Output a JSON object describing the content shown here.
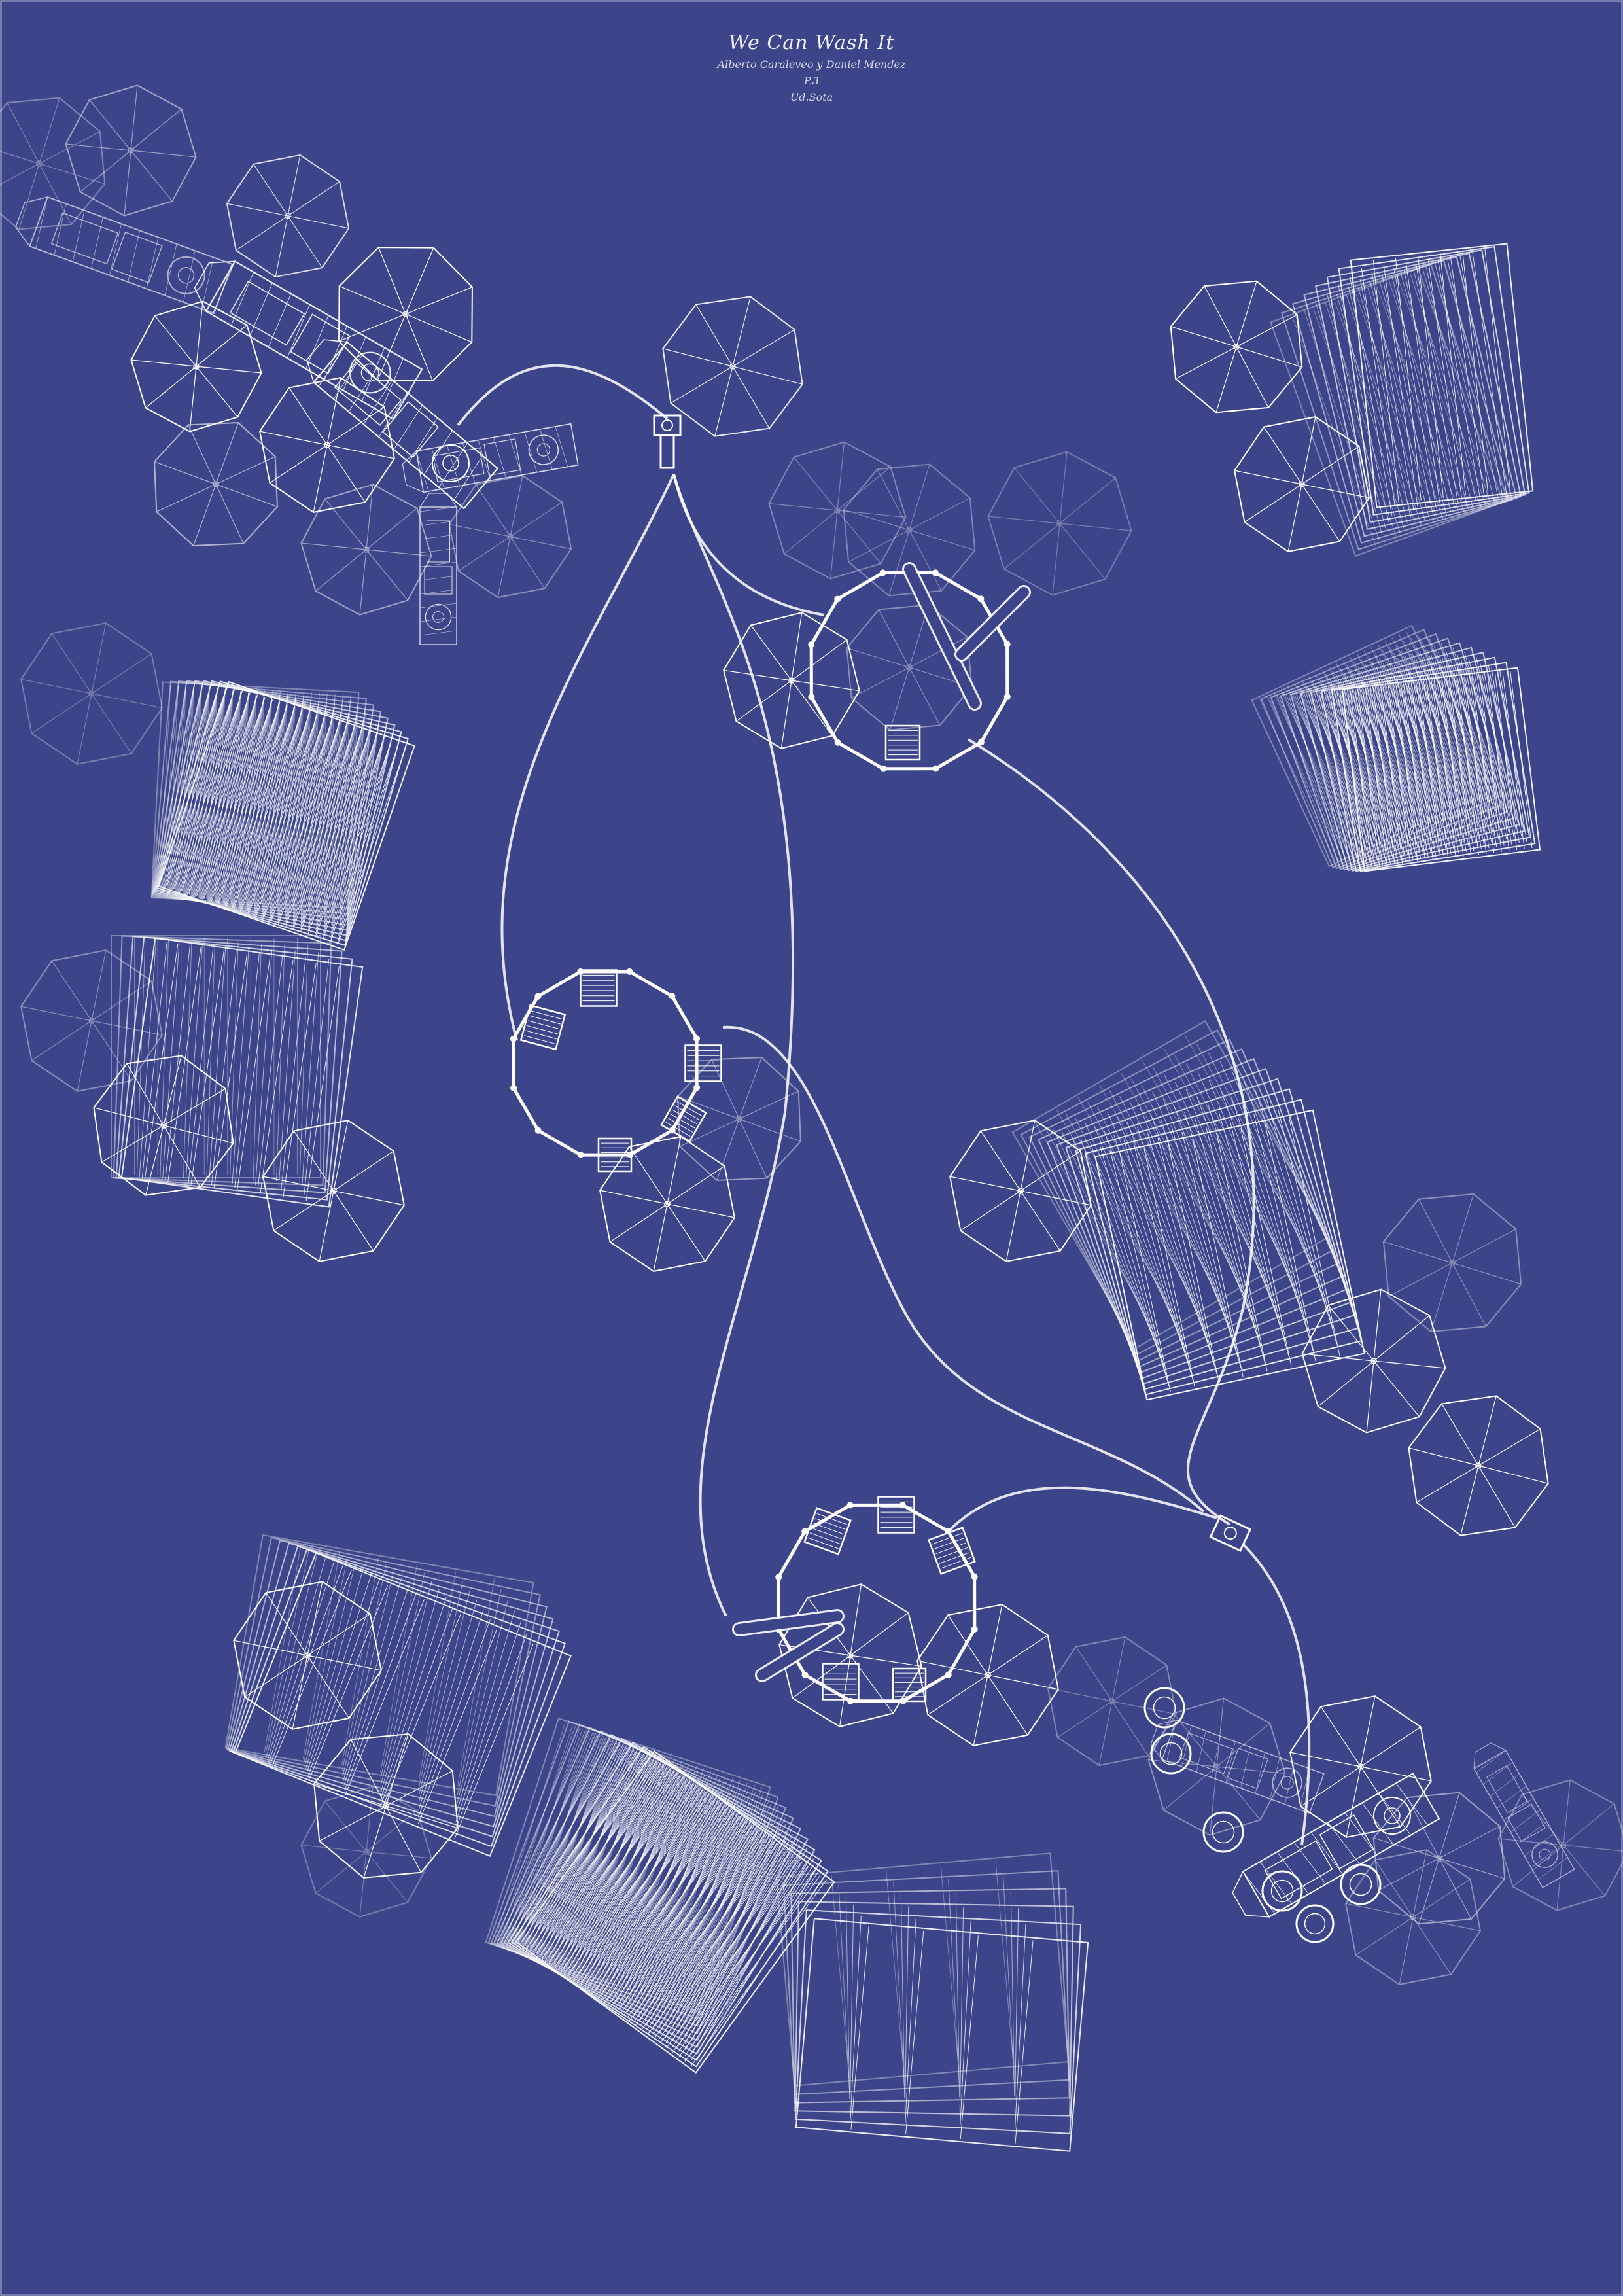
{
  "title_block": {
    "title": "We Can Wash It",
    "authors": "Alberto Caraleveo y Daniel Mendez",
    "code": "P.3",
    "school": "Ud.Sota"
  },
  "colors": {
    "background": "#3c458a",
    "ink": "#ffffff"
  },
  "icons": {
    "umbrella": "umbrella-plan-icon",
    "lounger": "sun-lounger-plan-icon",
    "hose": "hose-pipe-icon",
    "valve": "hose-connector-icon",
    "machinery": "machinery-plan-icon"
  }
}
